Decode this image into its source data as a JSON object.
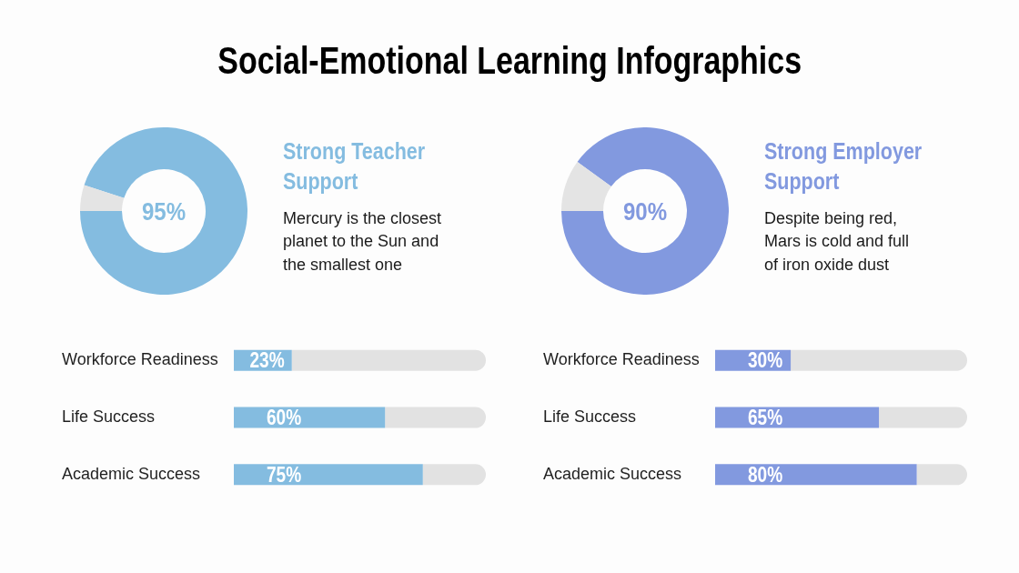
{
  "chart_data": [
    {
      "type": "other",
      "title": "Social-Emotional Learning Infographics"
    },
    {
      "type": "donut",
      "title": "Strong Teacher Support",
      "annotations": [
        "Mercury is the closest\nplanet to the Sun and\nthe smallest one"
      ],
      "categories": [
        null,
        null
      ],
      "values": [
        95,
        5
      ],
      "colors": [
        "#84bce0",
        "#e4e4e4"
      ],
      "value_labels": [
        "95%",
        null
      ]
    },
    {
      "type": "donut",
      "title": "Strong Employer Support",
      "annotations": [
        "Despite being red,\nMars is cold and full\nof iron oxide dust"
      ],
      "categories": [
        null,
        null
      ],
      "values": [
        90,
        10
      ],
      "colors": [
        "#8299df",
        "#e4e4e4"
      ],
      "value_labels": [
        "90%",
        null
      ]
    },
    {
      "type": "bar",
      "orientation": "horizontal",
      "stacked": true,
      "categories": [
        "Workforce Readiness",
        "Life Success",
        "Academic Success"
      ],
      "series": [
        {
          "color": "#84bce0",
          "values": [
            23,
            60,
            75
          ],
          "value_labels": [
            "23%",
            "60%",
            "75%"
          ]
        },
        {
          "color": "#e2e2e2",
          "values": [
            77,
            40,
            25
          ]
        }
      ],
      "xlim": [
        0,
        100
      ],
      "tick_labels": "y"
    },
    {
      "type": "bar",
      "orientation": "horizontal",
      "stacked": true,
      "categories": [
        "Workforce Readiness",
        "Life Success",
        "Academic Success"
      ],
      "series": [
        {
          "color": "#8299df",
          "values": [
            30,
            65,
            80
          ],
          "value_labels": [
            "30%",
            "65%",
            "80%"
          ]
        },
        {
          "color": "#e2e2e2",
          "values": [
            70,
            35,
            20
          ]
        }
      ],
      "xlim": [
        0,
        100
      ],
      "tick_labels": "y"
    }
  ]
}
